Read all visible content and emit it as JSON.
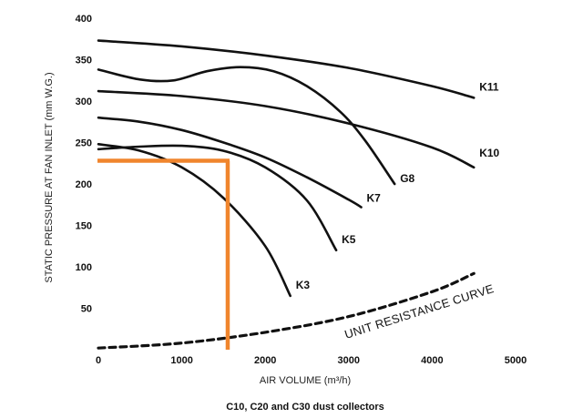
{
  "chart_data": {
    "type": "line",
    "title": "",
    "caption": "C10, C20 and C30 dust collectors",
    "xlabel": "AIR VOLUME (m³/h)",
    "ylabel": "STATIC PRESSURE AT FAN INLET (mm W.G.)",
    "xlim": [
      0,
      5000
    ],
    "ylim": [
      0,
      400
    ],
    "x_ticks": [
      0,
      1000,
      2000,
      3000,
      4000,
      5000
    ],
    "y_ticks": [
      50,
      100,
      150,
      200,
      250,
      300,
      350,
      400
    ],
    "x_tick_labels": [
      "0",
      "1000",
      "2000",
      "3000",
      "4000",
      "5000"
    ],
    "y_tick_labels": [
      "50",
      "100",
      "150",
      "200",
      "250",
      "300",
      "350",
      "400"
    ],
    "grid": false,
    "series": [
      {
        "name": "K11",
        "x": [
          0,
          1000,
          2000,
          3000,
          4000,
          4500
        ],
        "y": [
          373,
          366,
          355,
          340,
          318,
          304
        ]
      },
      {
        "name": "K10",
        "x": [
          0,
          1000,
          2000,
          3000,
          4000,
          4500
        ],
        "y": [
          312,
          306,
          294,
          273,
          244,
          220
        ]
      },
      {
        "name": "G8",
        "x": [
          0,
          500,
          900,
          1300,
          1700,
          2100,
          2500,
          2900,
          3200,
          3550
        ],
        "y": [
          338,
          326,
          325,
          336,
          341,
          336,
          318,
          287,
          252,
          200
        ]
      },
      {
        "name": "K7",
        "x": [
          0,
          500,
          1000,
          1500,
          2000,
          2500,
          3000,
          3150
        ],
        "y": [
          280,
          275,
          265,
          250,
          232,
          208,
          181,
          172
        ]
      },
      {
        "name": "K5",
        "x": [
          0,
          500,
          1000,
          1500,
          2000,
          2500,
          2850
        ],
        "y": [
          242,
          245,
          246,
          240,
          220,
          180,
          120
        ]
      },
      {
        "name": "K3",
        "x": [
          0,
          500,
          1000,
          1500,
          2000,
          2300
        ],
        "y": [
          248,
          240,
          220,
          183,
          125,
          65
        ]
      },
      {
        "name": "UNIT RESISTANCE CURVE",
        "style": "dashed",
        "x": [
          0,
          1000,
          2000,
          3000,
          4000,
          4500
        ],
        "y": [
          2,
          8,
          21,
          40,
          70,
          92
        ]
      }
    ],
    "operating_point": {
      "x": 1550,
      "y": 228,
      "color": "#f0852d"
    }
  }
}
